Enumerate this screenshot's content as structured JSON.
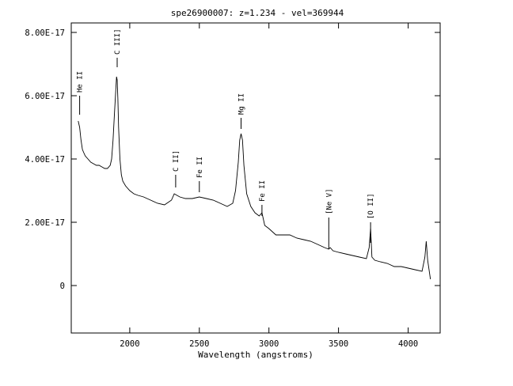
{
  "chart_data": {
    "type": "line",
    "title": "spe26900007: z=1.234 - vel=369944",
    "xlabel": "Wavelength (angstroms)",
    "ylabel": "",
    "xlim": [
      1580,
      4230
    ],
    "ylim": [
      -1.5e-17,
      8.3e-17
    ],
    "x_ticks": [
      {
        "value": 2000,
        "label": "2000"
      },
      {
        "value": 2500,
        "label": "2500"
      },
      {
        "value": 3000,
        "label": "3000"
      },
      {
        "value": 3500,
        "label": "3500"
      },
      {
        "value": 4000,
        "label": "4000"
      }
    ],
    "y_ticks": [
      {
        "value": 0,
        "label": "0"
      },
      {
        "value": 2e-17,
        "label": "2.00E-17"
      },
      {
        "value": 4e-17,
        "label": "4.00E-17"
      },
      {
        "value": 6e-17,
        "label": "6.00E-17"
      },
      {
        "value": 8e-17,
        "label": "8.00E-17"
      }
    ],
    "grid": false,
    "legend": "none",
    "line_color": "#000000",
    "series": [
      {
        "x": [
          1630,
          1640,
          1650,
          1660,
          1670,
          1680,
          1700,
          1720,
          1740,
          1760,
          1780,
          1800,
          1820,
          1840,
          1860,
          1870,
          1880,
          1890,
          1900,
          1905,
          1910,
          1915,
          1920,
          1930,
          1940,
          1950,
          1970,
          2000,
          2030,
          2060,
          2100,
          2150,
          2200,
          2250,
          2300,
          2320,
          2340,
          2360,
          2400,
          2450,
          2500,
          2550,
          2600,
          2650,
          2700,
          2740,
          2760,
          2780,
          2790,
          2800,
          2810,
          2820,
          2840,
          2870,
          2900,
          2930,
          2950,
          2970,
          3000,
          3050,
          3100,
          3150,
          3200,
          3250,
          3300,
          3350,
          3400,
          3430,
          3440,
          3460,
          3500,
          3550,
          3600,
          3650,
          3700,
          3720,
          3730,
          3740,
          3760,
          3800,
          3850,
          3900,
          3950,
          4000,
          4050,
          4100,
          4120,
          4130,
          4140,
          4160
        ],
        "y": [
          5.2e-17,
          5e-17,
          4.6e-17,
          4.3e-17,
          4.2e-17,
          4.1e-17,
          4e-17,
          3.9e-17,
          3.85e-17,
          3.8e-17,
          3.8e-17,
          3.75e-17,
          3.7e-17,
          3.7e-17,
          3.8e-17,
          4e-17,
          4.6e-17,
          5.4e-17,
          6.2e-17,
          6.6e-17,
          6.5e-17,
          5.9e-17,
          5e-17,
          4e-17,
          3.5e-17,
          3.3e-17,
          3.15e-17,
          3e-17,
          2.9e-17,
          2.85e-17,
          2.8e-17,
          2.7e-17,
          2.6e-17,
          2.55e-17,
          2.7e-17,
          2.9e-17,
          2.85e-17,
          2.8e-17,
          2.75e-17,
          2.75e-17,
          2.8e-17,
          2.75e-17,
          2.7e-17,
          2.6e-17,
          2.5e-17,
          2.6e-17,
          3e-17,
          3.9e-17,
          4.6e-17,
          4.8e-17,
          4.6e-17,
          3.8e-17,
          2.9e-17,
          2.5e-17,
          2.3e-17,
          2.2e-17,
          2.3e-17,
          1.9e-17,
          1.8e-17,
          1.6e-17,
          1.6e-17,
          1.6e-17,
          1.5e-17,
          1.45e-17,
          1.4e-17,
          1.3e-17,
          1.2e-17,
          1.15e-17,
          1.2e-17,
          1.1e-17,
          1.05e-17,
          1e-17,
          9.5e-18,
          9e-18,
          8.5e-18,
          1.2e-17,
          1.8e-17,
          9e-18,
          8e-18,
          7.5e-18,
          7e-18,
          6e-18,
          6e-18,
          5.5e-18,
          5e-18,
          4.5e-18,
          9e-18,
          1.4e-17,
          8e-18,
          2e-18
        ]
      }
    ],
    "line_markers": [
      {
        "label": "He II",
        "x": 1640,
        "y_top": 6e-17,
        "y_bottom": 5.4e-17,
        "label_y": 6.1e-17
      },
      {
        "label": "C III]",
        "x": 1910,
        "y_top": 7.2e-17,
        "y_bottom": 6.9e-17,
        "label_y": 7.3e-17
      },
      {
        "label": "C II]",
        "x": 2330,
        "y_top": 3.5e-17,
        "y_bottom": 3.1e-17,
        "label_y": 3.6e-17
      },
      {
        "label": "Fe II",
        "x": 2500,
        "y_top": 3.3e-17,
        "y_bottom": 2.95e-17,
        "label_y": 3.4e-17
      },
      {
        "label": "Mg II",
        "x": 2800,
        "y_top": 5.3e-17,
        "y_bottom": 4.95e-17,
        "label_y": 5.4e-17
      },
      {
        "label": "Fe II",
        "x": 2950,
        "y_top": 2.55e-17,
        "y_bottom": 2.2e-17,
        "label_y": 2.65e-17
      },
      {
        "label": "[Ne V]",
        "x": 3430,
        "y_top": 2.15e-17,
        "y_bottom": 1.15e-17,
        "label_y": 2.25e-17
      },
      {
        "label": "[O II]",
        "x": 3730,
        "y_top": 2e-17,
        "y_bottom": 1.35e-17,
        "label_y": 2.1e-17
      }
    ]
  }
}
